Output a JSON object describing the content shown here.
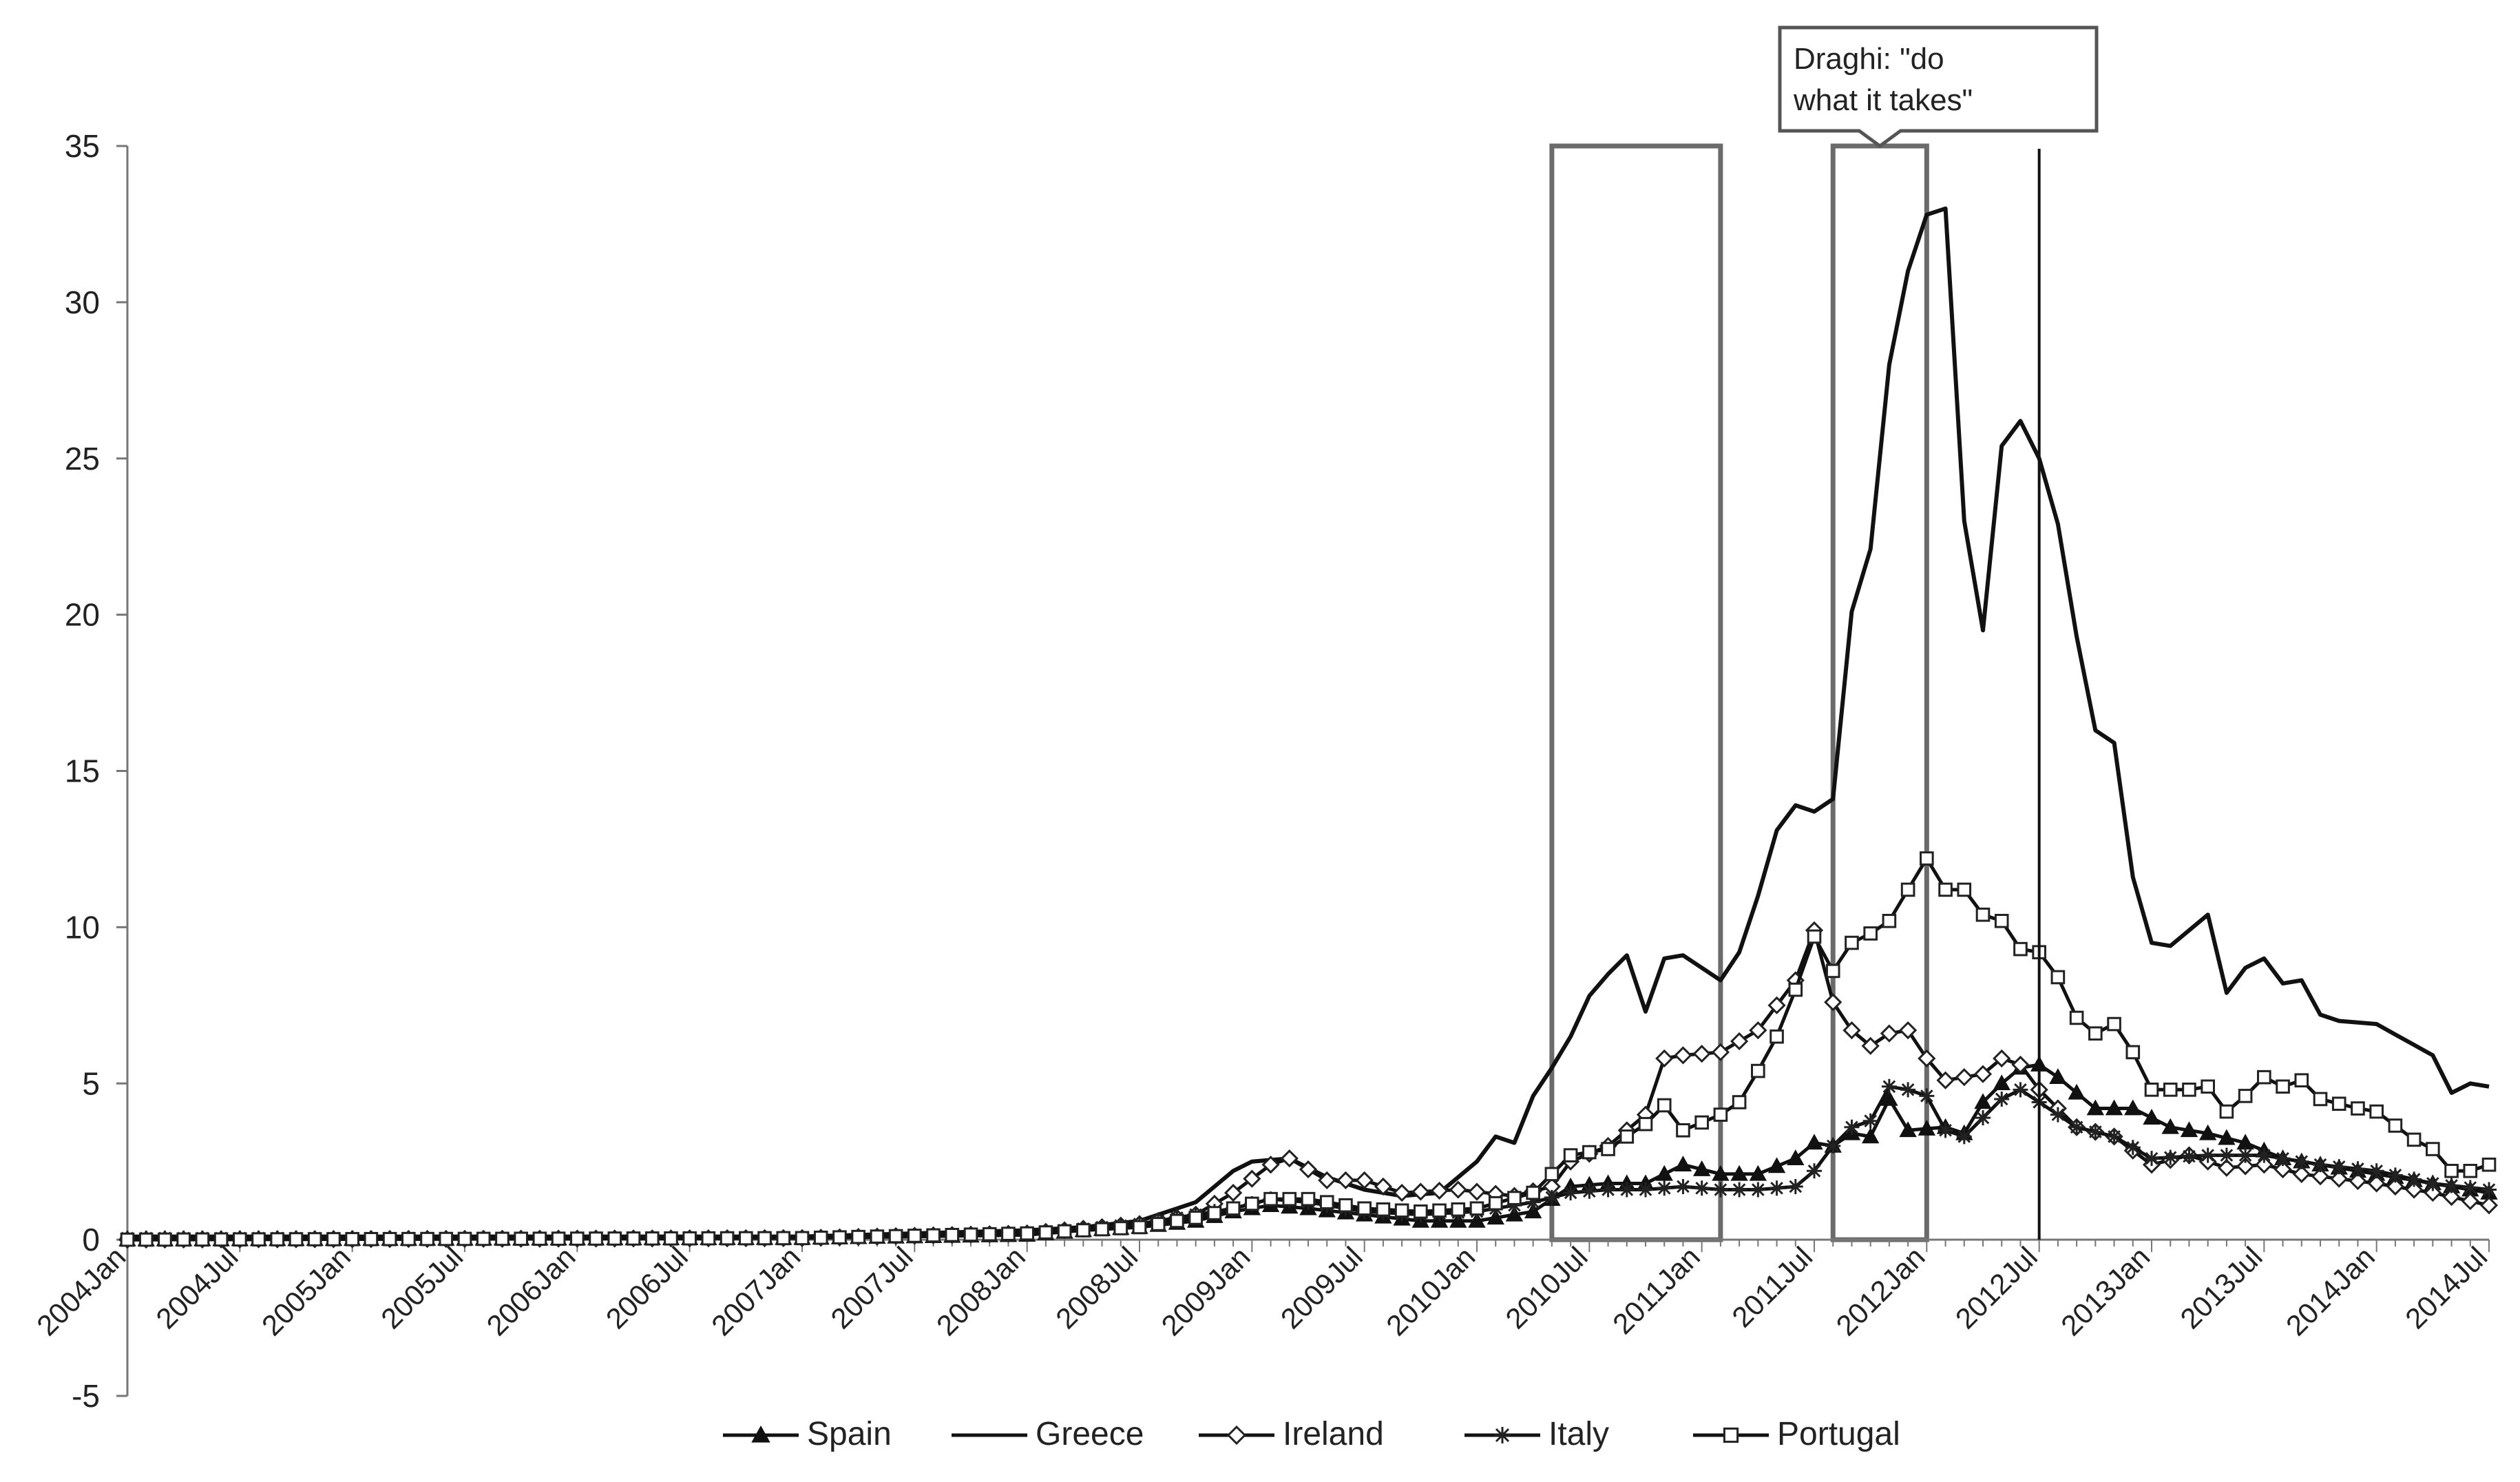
{
  "chart_data": {
    "type": "line",
    "title": "",
    "xlabel": "",
    "ylabel": "",
    "ylim": [
      -5,
      35
    ],
    "y_ticks": [
      -5,
      0,
      5,
      10,
      15,
      20,
      25,
      30,
      35
    ],
    "x_start": "2004Jan",
    "x_end": "2014Jul",
    "x_tick_labels": [
      "2004Jan",
      "2004Jul",
      "2005Jan",
      "2005Jul",
      "2006Jan",
      "2006Jul",
      "2007Jan",
      "2007Jul",
      "2008Jan",
      "2008Jul",
      "2009Jan",
      "2009Jul",
      "2010Jan",
      "2010Jul",
      "2011Jan",
      "2011Jul",
      "2012Jan",
      "2012Jul",
      "2013Jan",
      "2013Jul",
      "2014Jan",
      "2014Jul"
    ],
    "grid": false,
    "legend_position": "bottom",
    "series": [
      {
        "name": "Spain",
        "marker": "triangle",
        "points": [
          [
            "2004Jan",
            0.0
          ],
          [
            "2007Jan",
            0.05
          ],
          [
            "2008Jan",
            0.15
          ],
          [
            "2008Apr",
            0.3
          ],
          [
            "2008Jul",
            0.4
          ],
          [
            "2008Oct",
            0.6
          ],
          [
            "2008Dec",
            0.9
          ],
          [
            "2009Feb",
            1.1
          ],
          [
            "2009Apr",
            1.0
          ],
          [
            "2009Jul",
            0.8
          ],
          [
            "2009Oct",
            0.6
          ],
          [
            "2010Jan",
            0.6
          ],
          [
            "2010Apr",
            0.9
          ],
          [
            "2010Jun",
            1.7
          ],
          [
            "2010Aug",
            1.8
          ],
          [
            "2010Oct",
            1.8
          ],
          [
            "2010Dec",
            2.4
          ],
          [
            "2011Feb",
            2.1
          ],
          [
            "2011Apr",
            2.1
          ],
          [
            "2011Jun",
            2.6
          ],
          [
            "2011Jul",
            3.1
          ],
          [
            "2011Aug",
            3.0
          ],
          [
            "2011Sep",
            3.4
          ],
          [
            "2011Oct",
            3.3
          ],
          [
            "2011Nov",
            4.5
          ],
          [
            "2011Dec",
            3.5
          ],
          [
            "2012Feb",
            3.6
          ],
          [
            "2012Mar",
            3.4
          ],
          [
            "2012Apr",
            4.4
          ],
          [
            "2012May",
            5.0
          ],
          [
            "2012Jun",
            5.5
          ],
          [
            "2012Jul",
            5.6
          ],
          [
            "2012Aug",
            5.2
          ],
          [
            "2012Oct",
            4.2
          ],
          [
            "2012Dec",
            4.2
          ],
          [
            "2013Feb",
            3.6
          ],
          [
            "2013Apr",
            3.4
          ],
          [
            "2013Jun",
            3.1
          ],
          [
            "2013Aug",
            2.6
          ],
          [
            "2013Oct",
            2.4
          ],
          [
            "2014Jan",
            2.1
          ],
          [
            "2014Apr",
            1.8
          ],
          [
            "2014Jul",
            1.5
          ]
        ]
      },
      {
        "name": "Greece",
        "marker": "none",
        "points": [
          [
            "2004Jan",
            0.1
          ],
          [
            "2007Jan",
            0.1
          ],
          [
            "2008Jan",
            0.3
          ],
          [
            "2008Apr",
            0.4
          ],
          [
            "2008Jul",
            0.6
          ],
          [
            "2008Oct",
            1.2
          ],
          [
            "2008Dec",
            2.2
          ],
          [
            "2009Jan",
            2.5
          ],
          [
            "2009Mar",
            2.6
          ],
          [
            "2009May",
            2.0
          ],
          [
            "2009Jul",
            1.6
          ],
          [
            "2009Sep",
            1.4
          ],
          [
            "2009Nov",
            1.5
          ],
          [
            "2010Jan",
            2.5
          ],
          [
            "2010Feb",
            3.3
          ],
          [
            "2010Mar",
            3.1
          ],
          [
            "2010Apr",
            4.6
          ],
          [
            "2010May",
            5.5
          ],
          [
            "2010Jun",
            6.5
          ],
          [
            "2010Jul",
            7.8
          ],
          [
            "2010Aug",
            8.5
          ],
          [
            "2010Sep",
            9.1
          ],
          [
            "2010Oct",
            7.3
          ],
          [
            "2010Nov",
            9.0
          ],
          [
            "2010Dec",
            9.1
          ],
          [
            "2011Jan",
            8.7
          ],
          [
            "2011Feb",
            8.3
          ],
          [
            "2011Mar",
            9.2
          ],
          [
            "2011Apr",
            11.0
          ],
          [
            "2011May",
            13.1
          ],
          [
            "2011Jun",
            13.9
          ],
          [
            "2011Jul",
            13.7
          ],
          [
            "2011Aug",
            14.1
          ],
          [
            "2011Sep",
            20.1
          ],
          [
            "2011Oct",
            22.1
          ],
          [
            "2011Nov",
            28.0
          ],
          [
            "2011Dec",
            31.0
          ],
          [
            "2012Jan",
            32.8
          ],
          [
            "2012Feb",
            33.0
          ],
          [
            "2012Mar",
            23.0
          ],
          [
            "2012Apr",
            19.5
          ],
          [
            "2012May",
            25.4
          ],
          [
            "2012Jun",
            26.2
          ],
          [
            "2012Jul",
            25.0
          ],
          [
            "2012Aug",
            22.9
          ],
          [
            "2012Sep",
            19.3
          ],
          [
            "2012Oct",
            16.3
          ],
          [
            "2012Nov",
            15.9
          ],
          [
            "2012Dec",
            11.6
          ],
          [
            "2013Jan",
            9.5
          ],
          [
            "2013Feb",
            9.4
          ],
          [
            "2013Apr",
            10.4
          ],
          [
            "2013May",
            7.9
          ],
          [
            "2013Jun",
            8.7
          ],
          [
            "2013Jul",
            9.0
          ],
          [
            "2013Aug",
            8.2
          ],
          [
            "2013Sep",
            8.3
          ],
          [
            "2013Oct",
            7.2
          ],
          [
            "2013Nov",
            7.0
          ],
          [
            "2014Jan",
            6.9
          ],
          [
            "2014Apr",
            5.9
          ],
          [
            "2014May",
            4.7
          ],
          [
            "2014Jun",
            5.0
          ],
          [
            "2014Jul",
            4.9
          ]
        ]
      },
      {
        "name": "Ireland",
        "marker": "diamond",
        "points": [
          [
            "2004Jan",
            0.0
          ],
          [
            "2007Jan",
            0.05
          ],
          [
            "2008Jan",
            0.2
          ],
          [
            "2008Jul",
            0.5
          ],
          [
            "2008Oct",
            0.8
          ],
          [
            "2008Dec",
            1.5
          ],
          [
            "2009Feb",
            2.4
          ],
          [
            "2009Mar",
            2.6
          ],
          [
            "2009May",
            1.9
          ],
          [
            "2009Jul",
            1.9
          ],
          [
            "2009Sep",
            1.5
          ],
          [
            "2009Dec",
            1.6
          ],
          [
            "2010Mar",
            1.4
          ],
          [
            "2010May",
            1.7
          ],
          [
            "2010Jun",
            2.5
          ],
          [
            "2010Aug",
            3.0
          ],
          [
            "2010Oct",
            4.0
          ],
          [
            "2010Nov",
            5.8
          ],
          [
            "2010Dec",
            5.9
          ],
          [
            "2011Feb",
            6.0
          ],
          [
            "2011Apr",
            6.7
          ],
          [
            "2011Jun",
            8.3
          ],
          [
            "2011Jul",
            9.9
          ],
          [
            "2011Aug",
            7.6
          ],
          [
            "2011Sep",
            6.7
          ],
          [
            "2011Oct",
            6.2
          ],
          [
            "2011Nov",
            6.6
          ],
          [
            "2011Dec",
            6.7
          ],
          [
            "2012Jan",
            5.8
          ],
          [
            "2012Feb",
            5.1
          ],
          [
            "2012Apr",
            5.3
          ],
          [
            "2012May",
            5.8
          ],
          [
            "2012Jun",
            5.6
          ],
          [
            "2012Jul",
            4.8
          ],
          [
            "2012Sep",
            3.6
          ],
          [
            "2012Nov",
            3.3
          ],
          [
            "2013Jan",
            2.4
          ],
          [
            "2013Mar",
            2.7
          ],
          [
            "2013May",
            2.3
          ],
          [
            "2013Jul",
            2.4
          ],
          [
            "2013Sep",
            2.1
          ],
          [
            "2014Jan",
            1.8
          ],
          [
            "2014Apr",
            1.5
          ],
          [
            "2014Jul",
            1.1
          ]
        ]
      },
      {
        "name": "Italy",
        "marker": "star",
        "points": [
          [
            "2004Jan",
            0.05
          ],
          [
            "2007Jan",
            0.05
          ],
          [
            "2008Jan",
            0.2
          ],
          [
            "2008Jul",
            0.5
          ],
          [
            "2008Oct",
            0.8
          ],
          [
            "2008Dec",
            1.0
          ],
          [
            "2009Feb",
            1.3
          ],
          [
            "2009Apr",
            1.2
          ],
          [
            "2009Jul",
            0.9
          ],
          [
            "2009Oct",
            0.8
          ],
          [
            "2010Jan",
            0.9
          ],
          [
            "2010Apr",
            1.2
          ],
          [
            "2010Jun",
            1.5
          ],
          [
            "2010Aug",
            1.6
          ],
          [
            "2010Oct",
            1.6
          ],
          [
            "2010Dec",
            1.7
          ],
          [
            "2011Feb",
            1.6
          ],
          [
            "2011Apr",
            1.6
          ],
          [
            "2011Jun",
            1.7
          ],
          [
            "2011Jul",
            2.2
          ],
          [
            "2011Aug",
            3.0
          ],
          [
            "2011Sep",
            3.6
          ],
          [
            "2011Oct",
            3.8
          ],
          [
            "2011Nov",
            4.9
          ],
          [
            "2011Dec",
            4.8
          ],
          [
            "2012Jan",
            4.6
          ],
          [
            "2012Feb",
            3.5
          ],
          [
            "2012Mar",
            3.3
          ],
          [
            "2012Apr",
            3.9
          ],
          [
            "2012May",
            4.5
          ],
          [
            "2012Jun",
            4.8
          ],
          [
            "2012Jul",
            4.4
          ],
          [
            "2012Sep",
            3.6
          ],
          [
            "2012Nov",
            3.3
          ],
          [
            "2013Jan",
            2.6
          ],
          [
            "2013Apr",
            2.7
          ],
          [
            "2013Jul",
            2.7
          ],
          [
            "2013Oct",
            2.4
          ],
          [
            "2014Jan",
            2.2
          ],
          [
            "2014Apr",
            1.8
          ],
          [
            "2014Jul",
            1.6
          ]
        ]
      },
      {
        "name": "Portugal",
        "marker": "square",
        "points": [
          [
            "2004Jan",
            0.0
          ],
          [
            "2007Jan",
            0.05
          ],
          [
            "2008Jan",
            0.2
          ],
          [
            "2008Jul",
            0.4
          ],
          [
            "2008Oct",
            0.7
          ],
          [
            "2008Dec",
            1.0
          ],
          [
            "2009Feb",
            1.3
          ],
          [
            "2009Apr",
            1.3
          ],
          [
            "2009Jul",
            1.0
          ],
          [
            "2009Oct",
            0.9
          ],
          [
            "2010Jan",
            1.0
          ],
          [
            "2010Apr",
            1.5
          ],
          [
            "2010Jun",
            2.7
          ],
          [
            "2010Aug",
            2.9
          ],
          [
            "2010Oct",
            3.7
          ],
          [
            "2010Nov",
            4.3
          ],
          [
            "2010Dec",
            3.5
          ],
          [
            "2011Feb",
            4.0
          ],
          [
            "2011Mar",
            4.4
          ],
          [
            "2011Apr",
            5.4
          ],
          [
            "2011May",
            6.5
          ],
          [
            "2011Jun",
            8.0
          ],
          [
            "2011Jul",
            9.7
          ],
          [
            "2011Aug",
            8.6
          ],
          [
            "2011Sep",
            9.5
          ],
          [
            "2011Oct",
            9.8
          ],
          [
            "2011Nov",
            10.2
          ],
          [
            "2011Dec",
            11.2
          ],
          [
            "2012Jan",
            12.2
          ],
          [
            "2012Feb",
            11.2
          ],
          [
            "2012Mar",
            11.2
          ],
          [
            "2012Apr",
            10.4
          ],
          [
            "2012May",
            10.2
          ],
          [
            "2012Jun",
            9.3
          ],
          [
            "2012Jul",
            9.2
          ],
          [
            "2012Aug",
            8.4
          ],
          [
            "2012Sep",
            7.1
          ],
          [
            "2012Oct",
            6.6
          ],
          [
            "2012Nov",
            6.9
          ],
          [
            "2012Dec",
            6.0
          ],
          [
            "2013Jan",
            4.8
          ],
          [
            "2013Mar",
            4.8
          ],
          [
            "2013Apr",
            4.9
          ],
          [
            "2013May",
            4.1
          ],
          [
            "2013Jun",
            4.6
          ],
          [
            "2013Jul",
            5.2
          ],
          [
            "2013Aug",
            4.9
          ],
          [
            "2013Sep",
            5.1
          ],
          [
            "2013Oct",
            4.5
          ],
          [
            "2013Dec",
            4.2
          ],
          [
            "2014Jan",
            4.1
          ],
          [
            "2014Mar",
            3.2
          ],
          [
            "2014Apr",
            2.9
          ],
          [
            "2014May",
            2.2
          ],
          [
            "2014Jun",
            2.2
          ],
          [
            "2014Jul",
            2.4
          ]
        ]
      }
    ],
    "annotations": {
      "shaded_periods": [
        {
          "start": "2010May",
          "end": "2011Feb"
        },
        {
          "start": "2011Aug",
          "end": "2012Jan"
        }
      ],
      "vertical_line": {
        "at": "2012Jul"
      },
      "callout": {
        "text": "Draghi: \"do what it takes\"",
        "lines": [
          "Draghi: \"do",
          "what it takes\""
        ]
      }
    }
  }
}
